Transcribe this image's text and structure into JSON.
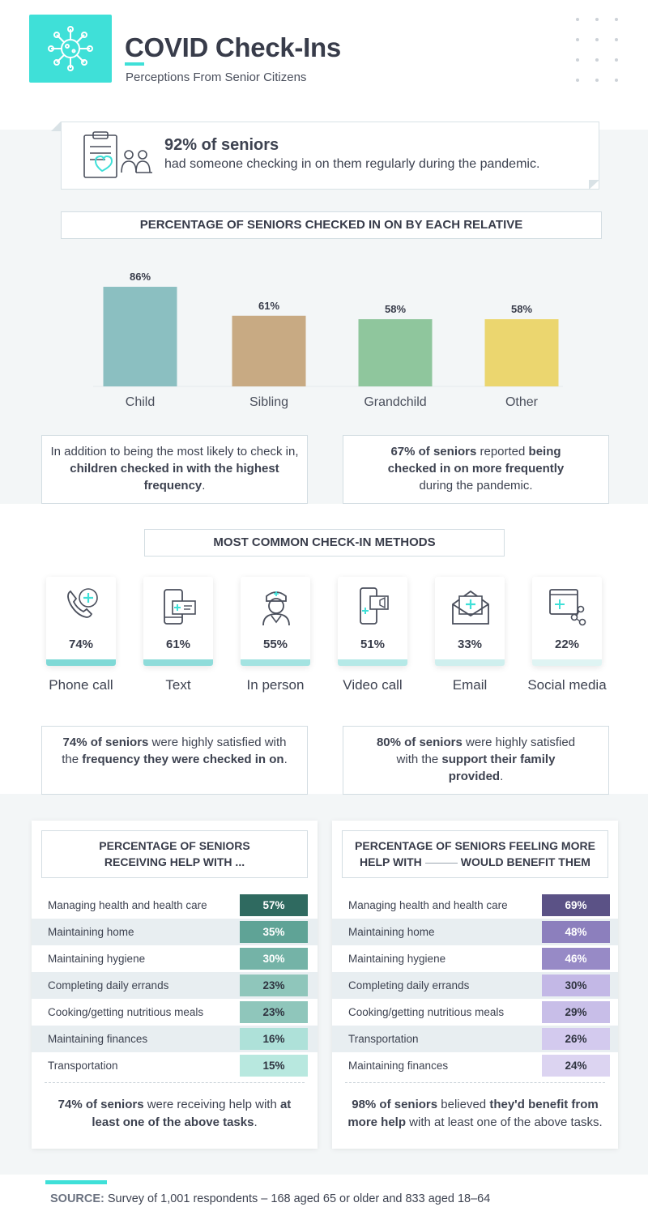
{
  "header": {
    "title": "COVID Check-Ins",
    "subtitle": "Perceptions From Senior Citizens",
    "logo_icon": "virus-icon",
    "accent_color": "#3fe0d8"
  },
  "banner": {
    "headline": "92% of seniors",
    "text": "had someone checking in on them regularly during the pandemic.",
    "icon": "clipboard-seniors-icon"
  },
  "relatives_section": {
    "heading": "PERCENTAGE OF SENIORS CHECKED IN ON BY EACH RELATIVE"
  },
  "chart_data": {
    "type": "bar",
    "title": "PERCENTAGE OF SENIORS CHECKED IN ON BY EACH RELATIVE",
    "categories": [
      "Child",
      "Sibling",
      "Grandchild",
      "Other"
    ],
    "values": [
      86,
      61,
      58,
      58
    ],
    "value_labels": [
      "86%",
      "61%",
      "58%",
      "58%"
    ],
    "colors": [
      "#8bbfc1",
      "#c8aa83",
      "#8fc69d",
      "#ebd66f"
    ],
    "ylim": [
      0,
      100
    ],
    "grid": false,
    "legend": "none"
  },
  "callouts_1": {
    "left": {
      "pre": "In addition to being the most likely to check in, ",
      "bold": "children checked in with the highest frequency",
      "post": "."
    },
    "right": {
      "bold1": "67% of seniors",
      "mid": " reported ",
      "bold2": "being checked in on more frequently",
      "post": " during the pandemic."
    }
  },
  "methods": {
    "heading": "MOST COMMON CHECK-IN METHODS",
    "items": [
      {
        "label": "Phone call",
        "pct": "74%",
        "value": 74,
        "icon": "phone-icon",
        "bar_color": "#7fd9d6"
      },
      {
        "label": "Text",
        "pct": "61%",
        "value": 61,
        "icon": "text-message-icon",
        "bar_color": "#8fdcda"
      },
      {
        "label": "In person",
        "pct": "55%",
        "value": 55,
        "icon": "nurse-icon",
        "bar_color": "#a3e3e1"
      },
      {
        "label": "Video call",
        "pct": "51%",
        "value": 51,
        "icon": "video-call-icon",
        "bar_color": "#b5e9e7"
      },
      {
        "label": "Email",
        "pct": "33%",
        "value": 33,
        "icon": "email-icon",
        "bar_color": "#cfefee"
      },
      {
        "label": "Social media",
        "pct": "22%",
        "value": 22,
        "icon": "social-media-icon",
        "bar_color": "#dff4f3"
      }
    ]
  },
  "callouts_2": {
    "left": {
      "bold1": "74% of seniors",
      "mid": " were highly satisfied with the ",
      "bold2": "frequency they were checked in on",
      "post": "."
    },
    "right": {
      "bold1": "80% of seniors",
      "mid": " were highly satisfied with the ",
      "bold2": "support their family provided",
      "post": "."
    }
  },
  "help_receiving": {
    "heading_line1": "PERCENTAGE OF SENIORS",
    "heading_line2": "RECEIVING HELP WITH ...",
    "rows": [
      {
        "label": "Managing health and health care",
        "pct": "57%",
        "value": 57,
        "color": "#2f6a60",
        "text_color": "#ffffff"
      },
      {
        "label": "Maintaining home",
        "pct": "35%",
        "value": 35,
        "color": "#5fa396",
        "text_color": "#ffffff"
      },
      {
        "label": "Maintaining hygiene",
        "pct": "30%",
        "value": 30,
        "color": "#74b3a7",
        "text_color": "#ffffff"
      },
      {
        "label": "Completing daily errands",
        "pct": "23%",
        "value": 23,
        "color": "#8fc6bb",
        "text_color": "#2f3440"
      },
      {
        "label": "Cooking/getting nutritious meals",
        "pct": "23%",
        "value": 23,
        "color": "#8fc6bb",
        "text_color": "#2f3440"
      },
      {
        "label": "Maintaining finances",
        "pct": "16%",
        "value": 16,
        "color": "#aee1d9",
        "text_color": "#2f3440"
      },
      {
        "label": "Transportation",
        "pct": "15%",
        "value": 15,
        "color": "#b8e8df",
        "text_color": "#2f3440"
      }
    ],
    "foot_bold1": "74% of seniors",
    "foot_mid": " were receiving help with ",
    "foot_bold2": "at least one of the above tasks",
    "foot_post": "."
  },
  "help_benefit": {
    "heading_line1": "PERCENTAGE OF SENIORS FEELING MORE",
    "heading_pre": "HELP WITH",
    "heading_post": "WOULD BENEFIT THEM",
    "rows": [
      {
        "label": "Managing health and health care",
        "pct": "69%",
        "value": 69,
        "color": "#5b5286",
        "text_color": "#ffffff"
      },
      {
        "label": "Maintaining home",
        "pct": "48%",
        "value": 48,
        "color": "#8c7fbd",
        "text_color": "#ffffff"
      },
      {
        "label": "Maintaining hygiene",
        "pct": "46%",
        "value": 46,
        "color": "#978ac6",
        "text_color": "#ffffff"
      },
      {
        "label": "Completing daily errands",
        "pct": "30%",
        "value": 30,
        "color": "#c3b8e6",
        "text_color": "#2f3440"
      },
      {
        "label": "Cooking/getting nutritious meals",
        "pct": "29%",
        "value": 29,
        "color": "#c8bee8",
        "text_color": "#2f3440"
      },
      {
        "label": "Transportation",
        "pct": "26%",
        "value": 26,
        "color": "#d3caee",
        "text_color": "#2f3440"
      },
      {
        "label": "Maintaining finances",
        "pct": "24%",
        "value": 24,
        "color": "#dcd4f1",
        "text_color": "#2f3440"
      }
    ],
    "foot_bold1": "98% of seniors",
    "foot_mid1": " believed ",
    "foot_bold2": "they'd benefit from more help",
    "foot_post": " with at least one of the above tasks."
  },
  "source": {
    "label": "SOURCE:",
    "text": "Survey of 1,001 respondents – 168 aged 65 or older and 833 aged 18–64"
  }
}
